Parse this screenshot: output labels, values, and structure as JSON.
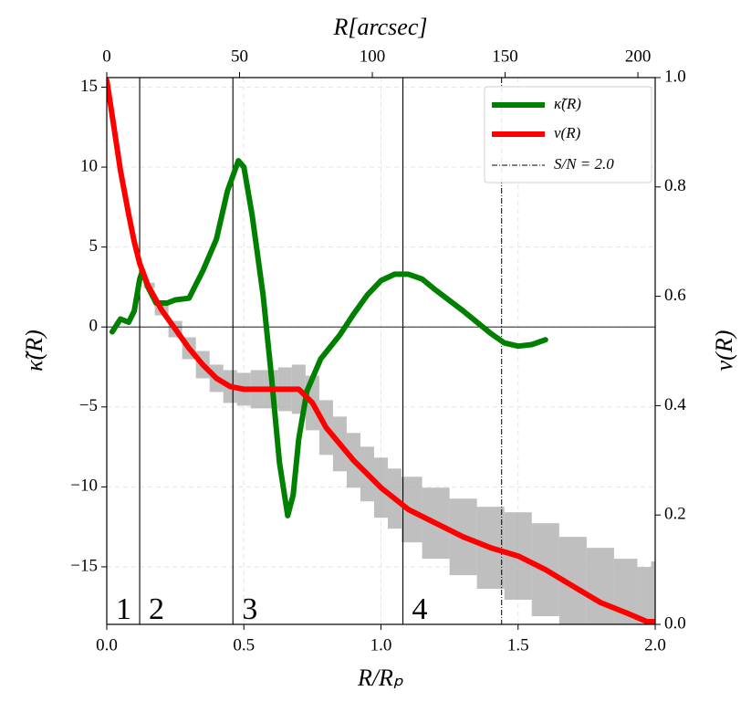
{
  "chart_data": {
    "type": "line",
    "x_label": "R/Rₚ",
    "y_label": "κ̃(R)",
    "y2_label": "ν(R)",
    "x2_label": "R[arcsec]",
    "xlim": [
      0,
      2.0
    ],
    "xticks": [
      {
        "value": 0,
        "label": "0.0"
      },
      {
        "value": 0.5,
        "label": "0.5"
      },
      {
        "value": 1,
        "label": "1.0"
      },
      {
        "value": 1.5,
        "label": "1.5"
      },
      {
        "value": 2,
        "label": "2.0"
      }
    ],
    "x2lim": [
      0,
      206.5
    ],
    "x2ticks": [
      0,
      50,
      100,
      150,
      200
    ],
    "ylim": [
      -18.6,
      15.6
    ],
    "yticks": [
      {
        "value": -15,
        "label": "−15"
      },
      {
        "value": -10,
        "label": "−10"
      },
      {
        "value": -5,
        "label": "−5"
      },
      0,
      5,
      10,
      15
    ],
    "y2lim": [
      0,
      1
    ],
    "y2ticks": [
      {
        "value": 0,
        "label": "0.0"
      },
      {
        "value": 0.2,
        "label": "0.2"
      },
      {
        "value": 0.4,
        "label": "0.4"
      },
      {
        "value": 0.6,
        "label": "0.6"
      },
      {
        "value": 0.8,
        "label": "0.8"
      },
      {
        "value": 1,
        "label": "1.0"
      }
    ],
    "grid": true,
    "hline": 0,
    "regions": {
      "boundaries": [
        0,
        0.12,
        0.46,
        1.08
      ],
      "labels": [
        "1",
        "2",
        "3",
        "4"
      ]
    },
    "sn_line": {
      "x": 1.44,
      "name": "S/N = 2.0"
    },
    "legend": "upper right",
    "series": [
      {
        "name": "κ̃(R)",
        "color": "#008000",
        "x": [
          0.02,
          0.05,
          0.08,
          0.1,
          0.12,
          0.13,
          0.15,
          0.18,
          0.22,
          0.25,
          0.3,
          0.35,
          0.4,
          0.44,
          0.48,
          0.5,
          0.53,
          0.57,
          0.6,
          0.63,
          0.66,
          0.68,
          0.7,
          0.73,
          0.78,
          0.85,
          0.9,
          0.95,
          1.0,
          1.05,
          1.1,
          1.15,
          1.2,
          1.3,
          1.4,
          1.45,
          1.5,
          1.55,
          1.6
        ],
        "values": [
          -0.3,
          0.5,
          0.3,
          1.0,
          3.0,
          3.5,
          2.5,
          1.5,
          1.5,
          1.7,
          1.8,
          3.5,
          5.5,
          8.5,
          10.4,
          10.0,
          7.0,
          2.0,
          -3.0,
          -8.5,
          -11.8,
          -10.5,
          -7.0,
          -4.0,
          -2.0,
          -0.5,
          0.8,
          2.0,
          2.9,
          3.3,
          3.3,
          3.0,
          2.3,
          1.0,
          -0.4,
          -1.0,
          -1.2,
          -1.1,
          -0.8
        ]
      },
      {
        "name": "ν(R)",
        "color": "#ff0000",
        "axis": "y2",
        "x": [
          0,
          0.02,
          0.05,
          0.08,
          0.1,
          0.12,
          0.15,
          0.2,
          0.25,
          0.3,
          0.35,
          0.4,
          0.45,
          0.5,
          0.55,
          0.6,
          0.65,
          0.7,
          0.75,
          0.8,
          0.85,
          0.9,
          0.95,
          1.0,
          1.05,
          1.1,
          1.2,
          1.3,
          1.4,
          1.5,
          1.6,
          1.7,
          1.8,
          1.9,
          1.97,
          2.0
        ],
        "values": [
          0.995,
          0.93,
          0.83,
          0.75,
          0.7,
          0.66,
          0.62,
          0.575,
          0.54,
          0.505,
          0.475,
          0.45,
          0.435,
          0.43,
          0.43,
          0.43,
          0.43,
          0.43,
          0.405,
          0.36,
          0.33,
          0.3,
          0.275,
          0.25,
          0.23,
          0.21,
          0.185,
          0.16,
          0.14,
          0.125,
          0.1,
          0.07,
          0.04,
          0.02,
          0.005,
          0.005
        ],
        "errors": [
          0,
          0,
          0,
          0,
          0,
          0,
          0.005,
          0.01,
          0.015,
          0.02,
          0.025,
          0.025,
          0.03,
          0.03,
          0.035,
          0.035,
          0.04,
          0.045,
          0.05,
          0.05,
          0.05,
          0.05,
          0.05,
          0.055,
          0.055,
          0.06,
          0.065,
          0.07,
          0.075,
          0.08,
          0.085,
          0.09,
          0.1,
          0.1,
          0.1,
          0.11
        ],
        "error_color": "#a9a9a9"
      }
    ]
  }
}
